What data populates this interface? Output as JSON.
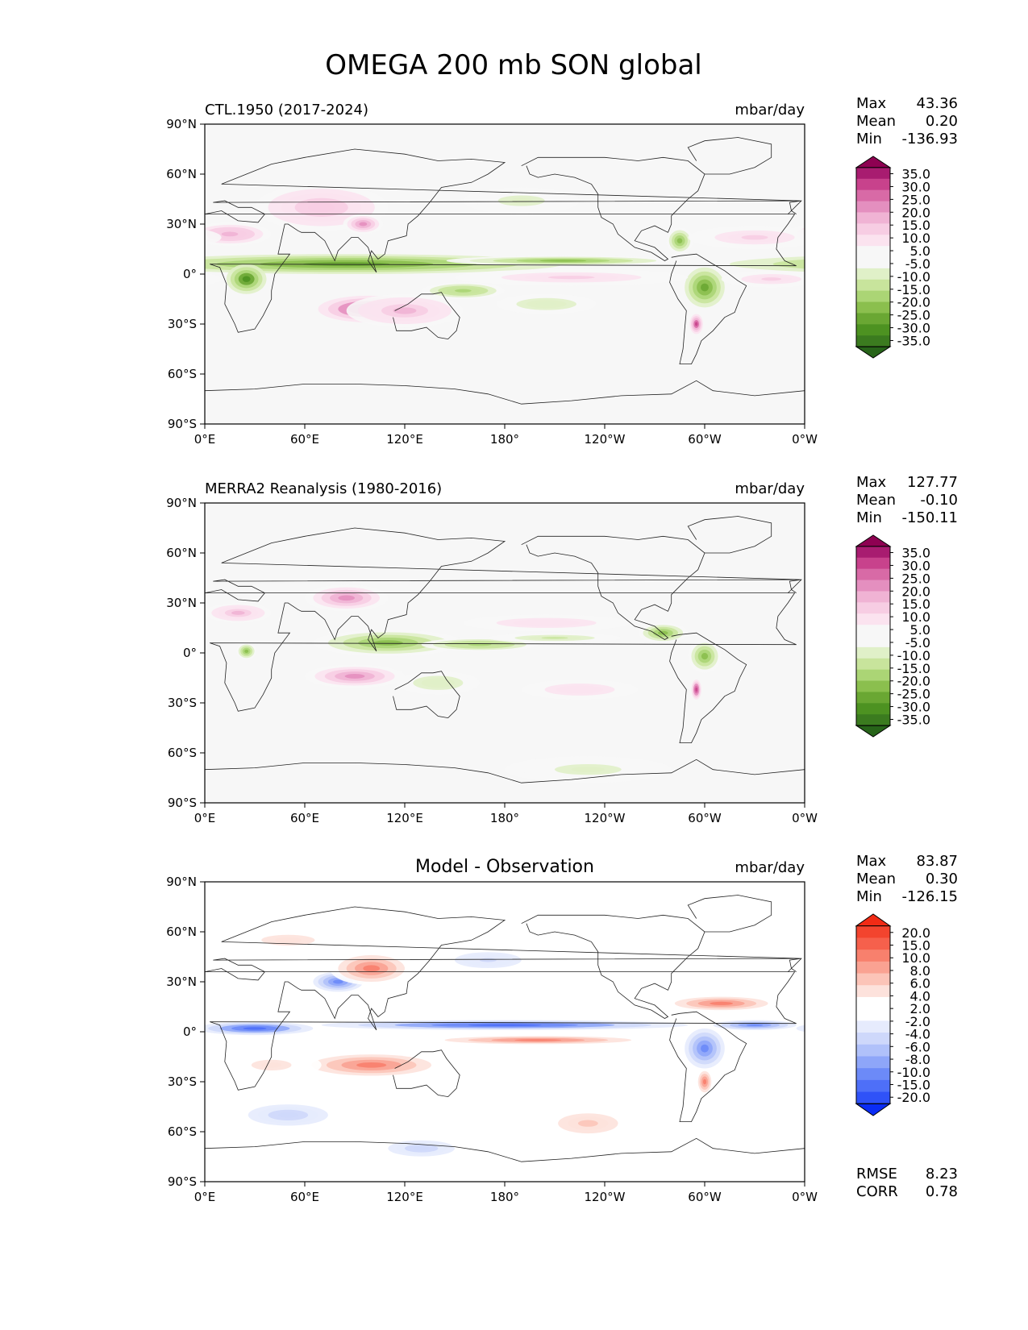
{
  "figure": {
    "title": "OMEGA 200 mb SON global"
  },
  "axes": {
    "lon_ticks": [
      "0°E",
      "60°E",
      "120°E",
      "180°",
      "120°W",
      "60°W",
      "0°W"
    ],
    "lat_ticks": [
      "90°N",
      "60°N",
      "30°N",
      "0°",
      "30°S",
      "60°S",
      "90°S"
    ]
  },
  "colors": {
    "pink_green": [
      "#276419",
      "#3b7b1f",
      "#4d9221",
      "#6aa733",
      "#8bbf4e",
      "#abd575",
      "#c8e49c",
      "#e0f0c8",
      "#f7f7f7",
      "#f7f7f7",
      "#fbe3ef",
      "#f7cde3",
      "#f0b3d4",
      "#e48fbf",
      "#d86aa6",
      "#c8428c",
      "#a81c70",
      "#8e0152"
    ],
    "diff": [
      "#0a2cf5",
      "#2f52f8",
      "#4e6ff8",
      "#6c8af8",
      "#8ea6f9",
      "#b0c1fa",
      "#ced8fb",
      "#e6ebfd",
      "#ffffff",
      "#ffffff",
      "#fde2dc",
      "#fcc4b8",
      "#faa292",
      "#f8806d",
      "#f6604c",
      "#f3442e",
      "#f12b15"
    ]
  },
  "chart_data": [
    {
      "type": "heatmap",
      "panel": "ctl",
      "title_left": "CTL.1950 (2017-2024)",
      "title_center": "",
      "units": "mbar/day",
      "xlim": [
        0,
        360
      ],
      "ylim": [
        -90,
        90
      ],
      "stats": [
        {
          "label": "Max",
          "value": "43.36"
        },
        {
          "label": "Mean",
          "value": "0.20"
        },
        {
          "label": "Min",
          "value": "-136.93"
        }
      ],
      "colorbar_levels": [
        "35.0",
        "30.0",
        "25.0",
        "20.0",
        "15.0",
        "10.0",
        "5.0",
        "-5.0",
        "-10.0",
        "-15.0",
        "-20.0",
        "-25.0",
        "-30.0",
        "-35.0"
      ],
      "colormap": "pink_green",
      "clim": [
        -40,
        40
      ],
      "field_features": [
        {
          "lon": 85,
          "lat": 6,
          "dlon": 130,
          "dlat": 6,
          "value": -24
        },
        {
          "lon": 215,
          "lat": 8,
          "dlon": 70,
          "dlat": 3,
          "value": -22
        },
        {
          "lon": 25,
          "lat": -3,
          "dlon": 12,
          "dlat": 9,
          "value": -28
        },
        {
          "lon": 300,
          "lat": -8,
          "dlon": 12,
          "dlat": 12,
          "value": -24
        },
        {
          "lon": 155,
          "lat": -10,
          "dlon": 25,
          "dlat": 5,
          "value": -16
        },
        {
          "lon": 205,
          "lat": -18,
          "dlon": 30,
          "dlat": 6,
          "value": -8
        },
        {
          "lon": 190,
          "lat": 44,
          "dlon": 35,
          "dlat": 8,
          "value": -6
        },
        {
          "lon": 285,
          "lat": 20,
          "dlon": 8,
          "dlat": 8,
          "value": -20
        },
        {
          "lon": 98,
          "lat": -21,
          "dlon": 30,
          "dlat": 8,
          "value": 30
        },
        {
          "lon": 120,
          "lat": -22,
          "dlon": 35,
          "dlat": 10,
          "value": 14
        },
        {
          "lon": 70,
          "lat": 40,
          "dlon": 40,
          "dlat": 14,
          "value": 12
        },
        {
          "lon": 15,
          "lat": 24,
          "dlon": 25,
          "dlat": 7,
          "value": 16
        },
        {
          "lon": 330,
          "lat": 22,
          "dlon": 40,
          "dlat": 7,
          "value": 10
        },
        {
          "lon": 220,
          "lat": -2,
          "dlon": 70,
          "dlat": 5,
          "value": 10
        },
        {
          "lon": 340,
          "lat": -3,
          "dlon": 30,
          "dlat": 5,
          "value": 10
        },
        {
          "lon": 295,
          "lat": -30,
          "dlon": 4,
          "dlat": 6,
          "value": 28
        },
        {
          "lon": 95,
          "lat": 30,
          "dlon": 12,
          "dlat": 6,
          "value": 20
        }
      ]
    },
    {
      "type": "heatmap",
      "panel": "obs",
      "title_left": "MERRA2 Reanalysis (1980-2016)",
      "title_center": "",
      "units": "mbar/day",
      "xlim": [
        0,
        360
      ],
      "ylim": [
        -90,
        90
      ],
      "stats": [
        {
          "label": "Max",
          "value": "127.77"
        },
        {
          "label": "Mean",
          "value": "-0.10"
        },
        {
          "label": "Min",
          "value": "-150.11"
        }
      ],
      "colorbar_levels": [
        "35.0",
        "30.0",
        "25.0",
        "20.0",
        "15.0",
        "10.0",
        "5.0",
        "-5.0",
        "-10.0",
        "-15.0",
        "-20.0",
        "-25.0",
        "-30.0",
        "-35.0"
      ],
      "colormap": "pink_green",
      "clim": [
        -40,
        40
      ],
      "field_features": [
        {
          "lon": 110,
          "lat": 6,
          "dlon": 45,
          "dlat": 8,
          "value": -20
        },
        {
          "lon": 165,
          "lat": 5,
          "dlon": 35,
          "dlat": 4,
          "value": -16
        },
        {
          "lon": 210,
          "lat": 9,
          "dlon": 40,
          "dlat": 3,
          "value": -10
        },
        {
          "lon": 275,
          "lat": 12,
          "dlon": 15,
          "dlat": 6,
          "value": -22
        },
        {
          "lon": 300,
          "lat": -2,
          "dlon": 10,
          "dlat": 10,
          "value": -18
        },
        {
          "lon": 25,
          "lat": 1,
          "dlon": 6,
          "dlat": 5,
          "value": -22
        },
        {
          "lon": 140,
          "lat": -18,
          "dlon": 25,
          "dlat": 7,
          "value": -8
        },
        {
          "lon": 230,
          "lat": -70,
          "dlon": 50,
          "dlat": 8,
          "value": -6
        },
        {
          "lon": 90,
          "lat": -14,
          "dlon": 30,
          "dlat": 7,
          "value": 20
        },
        {
          "lon": 85,
          "lat": 33,
          "dlon": 25,
          "dlat": 8,
          "value": 22
        },
        {
          "lon": 20,
          "lat": 24,
          "dlon": 20,
          "dlat": 6,
          "value": 14
        },
        {
          "lon": 205,
          "lat": 18,
          "dlon": 50,
          "dlat": 5,
          "value": 8
        },
        {
          "lon": 225,
          "lat": -22,
          "dlon": 35,
          "dlat": 6,
          "value": 8
        },
        {
          "lon": 295,
          "lat": -22,
          "dlon": 3,
          "dlat": 6,
          "value": 30
        }
      ]
    },
    {
      "type": "heatmap",
      "panel": "diff",
      "title_left": "",
      "title_center": "Model - Observation",
      "units": "mbar/day",
      "xlim": [
        0,
        360
      ],
      "ylim": [
        -90,
        90
      ],
      "stats": [
        {
          "label": "Max",
          "value": "83.87"
        },
        {
          "label": "Mean",
          "value": "0.30"
        },
        {
          "label": "Min",
          "value": "-126.15"
        }
      ],
      "extra_stats": [
        {
          "label": "RMSE",
          "value": "8.23"
        },
        {
          "label": "CORR",
          "value": "0.78"
        }
      ],
      "colorbar_levels": [
        "20.0",
        "15.0",
        "10.0",
        "8.0",
        "6.0",
        "4.0",
        "2.0",
        "-2.0",
        "-4.0",
        "-6.0",
        "-8.0",
        "-10.0",
        "-15.0",
        "-20.0"
      ],
      "colormap": "diff",
      "clim": [
        -22,
        22
      ],
      "field_features": [
        {
          "lon": 180,
          "lat": 4,
          "dlon": 110,
          "dlat": 3,
          "value": -16
        },
        {
          "lon": 30,
          "lat": 2,
          "dlon": 35,
          "dlat": 4,
          "value": -16
        },
        {
          "lon": 330,
          "lat": 4,
          "dlon": 25,
          "dlat": 3,
          "value": -14
        },
        {
          "lon": 300,
          "lat": -10,
          "dlon": 12,
          "dlat": 12,
          "value": -14
        },
        {
          "lon": 80,
          "lat": 30,
          "dlon": 15,
          "dlat": 6,
          "value": -14
        },
        {
          "lon": 50,
          "lat": -50,
          "dlon": 30,
          "dlat": 8,
          "value": -6
        },
        {
          "lon": 130,
          "lat": -70,
          "dlon": 25,
          "dlat": 6,
          "value": -6
        },
        {
          "lon": 170,
          "lat": 43,
          "dlon": 25,
          "dlat": 6,
          "value": -4
        },
        {
          "lon": 200,
          "lat": -5,
          "dlon": 70,
          "dlat": 3,
          "value": 12
        },
        {
          "lon": 100,
          "lat": -20,
          "dlon": 45,
          "dlat": 8,
          "value": 12
        },
        {
          "lon": 100,
          "lat": 38,
          "dlon": 25,
          "dlat": 10,
          "value": 12
        },
        {
          "lon": 310,
          "lat": 17,
          "dlon": 35,
          "dlat": 5,
          "value": 14
        },
        {
          "lon": 230,
          "lat": -55,
          "dlon": 30,
          "dlat": 10,
          "value": 8
        },
        {
          "lon": 50,
          "lat": 55,
          "dlon": 40,
          "dlat": 8,
          "value": 6
        },
        {
          "lon": 40,
          "lat": -20,
          "dlon": 30,
          "dlat": 8,
          "value": 6
        },
        {
          "lon": 300,
          "lat": -30,
          "dlon": 5,
          "dlat": 8,
          "value": 14
        }
      ]
    }
  ]
}
